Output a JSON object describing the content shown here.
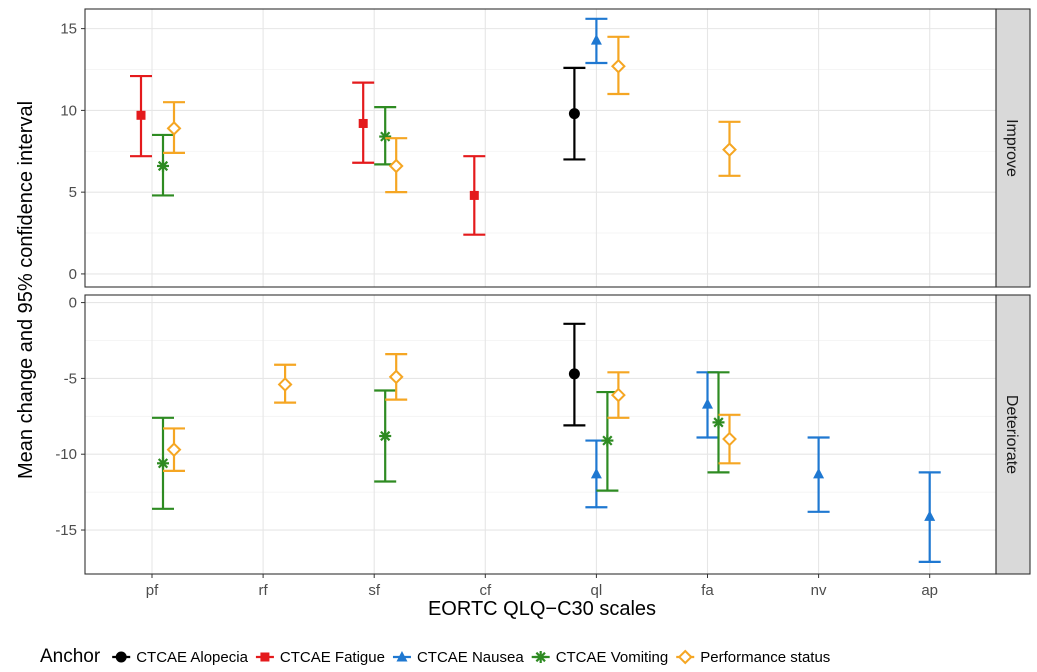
{
  "chart_data": {
    "type": "errorbar",
    "xlabel": "EORTC QLQ−C30 scales",
    "ylabel": "Mean change and 95% confidence interval",
    "categories": [
      "pf",
      "rf",
      "sf",
      "cf",
      "ql",
      "fa",
      "nv",
      "ap"
    ],
    "legend": {
      "title": "Anchor",
      "placement": "bottom"
    },
    "series": [
      {
        "name": "CTCAE Alopecia",
        "color": "#000000",
        "marker": "circle"
      },
      {
        "name": "CTCAE Fatigue",
        "color": "#e41a1c",
        "marker": "square"
      },
      {
        "name": "CTCAE Nausea",
        "color": "#1f78d1",
        "marker": "triangle"
      },
      {
        "name": "CTCAE Vomiting",
        "color": "#2e8b22",
        "marker": "asterisk"
      },
      {
        "name": "Performance status",
        "color": "#f5a623",
        "marker": "diamond"
      }
    ],
    "panels": [
      {
        "label": "Improve",
        "ylim": [
          -0.8,
          16.2
        ],
        "yticks": [
          0,
          5,
          10,
          15
        ],
        "points": [
          {
            "category": "pf",
            "series": "CTCAE Fatigue",
            "mean": 9.7,
            "lower": 7.2,
            "upper": 12.1
          },
          {
            "category": "pf",
            "series": "CTCAE Vomiting",
            "mean": 6.6,
            "lower": 4.8,
            "upper": 8.5
          },
          {
            "category": "pf",
            "series": "Performance status",
            "mean": 8.9,
            "lower": 7.4,
            "upper": 10.5
          },
          {
            "category": "sf",
            "series": "CTCAE Fatigue",
            "mean": 9.2,
            "lower": 6.8,
            "upper": 11.7
          },
          {
            "category": "sf",
            "series": "CTCAE Vomiting",
            "mean": 8.4,
            "lower": 6.7,
            "upper": 10.2
          },
          {
            "category": "sf",
            "series": "Performance status",
            "mean": 6.6,
            "lower": 5.0,
            "upper": 8.3
          },
          {
            "category": "cf",
            "series": "CTCAE Fatigue",
            "mean": 4.8,
            "lower": 2.4,
            "upper": 7.2
          },
          {
            "category": "ql",
            "series": "CTCAE Alopecia",
            "mean": 9.8,
            "lower": 7.0,
            "upper": 12.6
          },
          {
            "category": "ql",
            "series": "CTCAE Nausea",
            "mean": 14.3,
            "lower": 12.9,
            "upper": 15.6
          },
          {
            "category": "ql",
            "series": "Performance status",
            "mean": 12.7,
            "lower": 11.0,
            "upper": 14.5
          },
          {
            "category": "fa",
            "series": "Performance status",
            "mean": 7.6,
            "lower": 6.0,
            "upper": 9.3
          }
        ]
      },
      {
        "label": "Deteriorate",
        "ylim": [
          -17.9,
          0.5
        ],
        "yticks": [
          0,
          -5,
          -10,
          -15
        ],
        "points": [
          {
            "category": "pf",
            "series": "CTCAE Vomiting",
            "mean": -10.6,
            "lower": -13.6,
            "upper": -7.6
          },
          {
            "category": "pf",
            "series": "Performance status",
            "mean": -9.7,
            "lower": -11.1,
            "upper": -8.3
          },
          {
            "category": "rf",
            "series": "Performance status",
            "mean": -5.4,
            "lower": -6.6,
            "upper": -4.1
          },
          {
            "category": "sf",
            "series": "CTCAE Vomiting",
            "mean": -8.8,
            "lower": -11.8,
            "upper": -5.8
          },
          {
            "category": "sf",
            "series": "Performance status",
            "mean": -4.9,
            "lower": -6.4,
            "upper": -3.4
          },
          {
            "category": "ql",
            "series": "CTCAE Alopecia",
            "mean": -4.7,
            "lower": -8.1,
            "upper": -1.4
          },
          {
            "category": "ql",
            "series": "CTCAE Nausea",
            "mean": -11.3,
            "lower": -13.5,
            "upper": -9.1
          },
          {
            "category": "ql",
            "series": "CTCAE Vomiting",
            "mean": -9.1,
            "lower": -12.4,
            "upper": -5.9
          },
          {
            "category": "ql",
            "series": "Performance status",
            "mean": -6.1,
            "lower": -7.6,
            "upper": -4.6
          },
          {
            "category": "fa",
            "series": "CTCAE Nausea",
            "mean": -6.7,
            "lower": -8.9,
            "upper": -4.6
          },
          {
            "category": "fa",
            "series": "CTCAE Vomiting",
            "mean": -7.9,
            "lower": -11.2,
            "upper": -4.6
          },
          {
            "category": "fa",
            "series": "Performance status",
            "mean": -9.0,
            "lower": -10.6,
            "upper": -7.4
          },
          {
            "category": "nv",
            "series": "CTCAE Nausea",
            "mean": -11.3,
            "lower": -13.8,
            "upper": -8.9
          },
          {
            "category": "ap",
            "series": "CTCAE Nausea",
            "mean": -14.1,
            "lower": -17.1,
            "upper": -11.2
          }
        ]
      }
    ]
  }
}
